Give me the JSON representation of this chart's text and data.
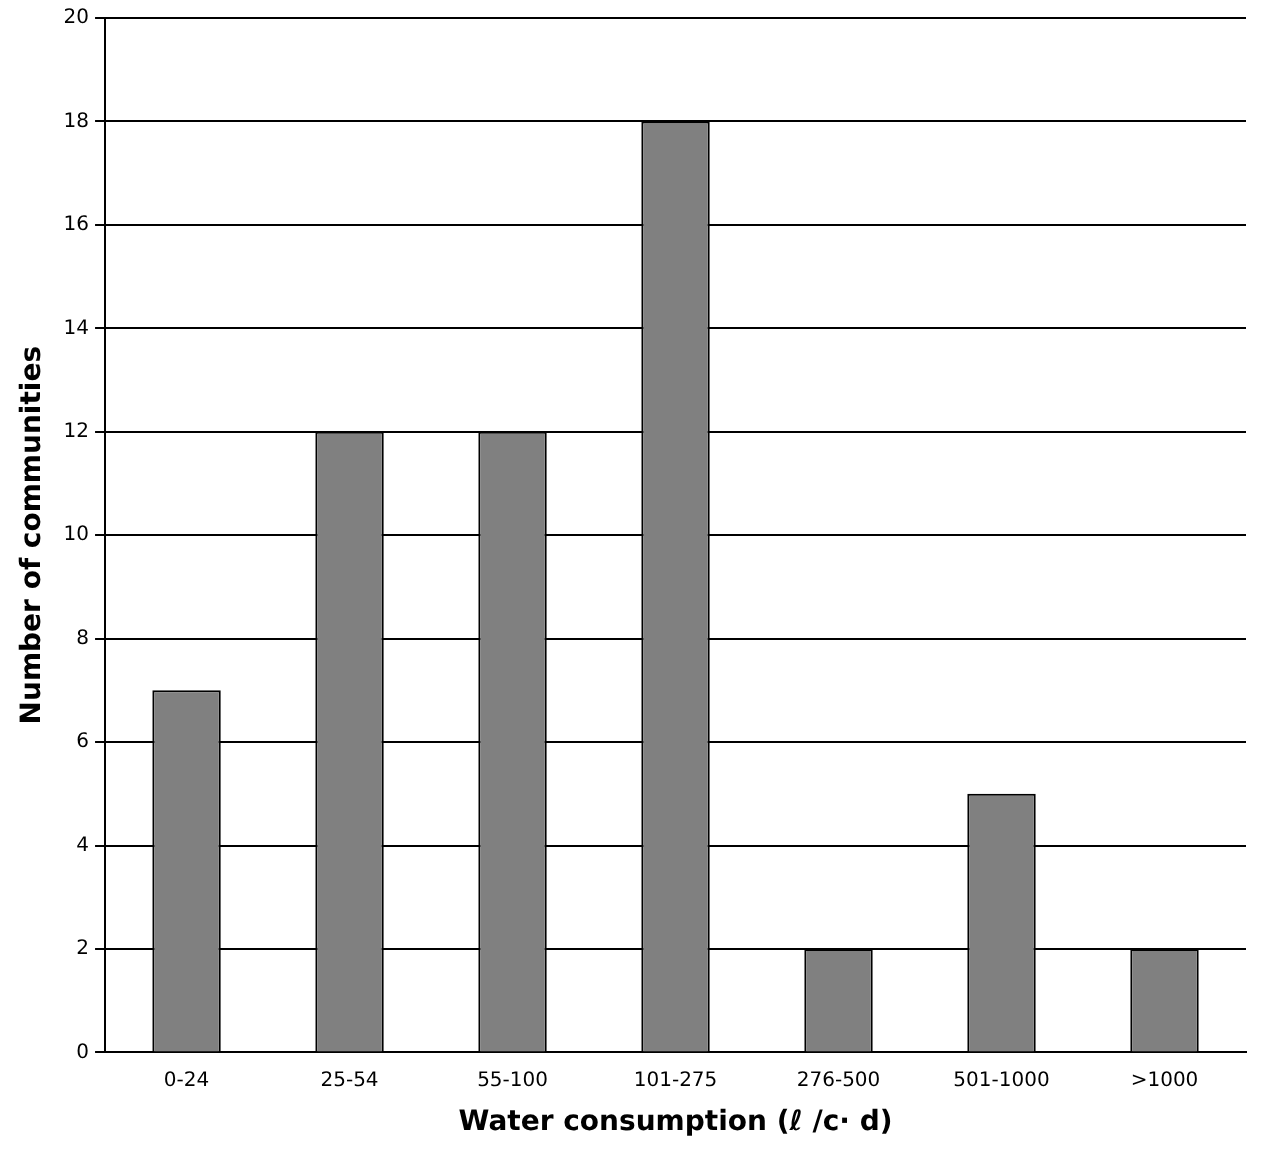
{
  "chart_data": {
    "type": "bar",
    "xlabel": "Water consumption (ℓ /c· d)",
    "ylabel": "Number of communities",
    "categories": [
      "0-24",
      "25-54",
      "55-100",
      "101-275",
      "276-500",
      "501-1000",
      ">1000"
    ],
    "values": [
      7,
      12,
      12,
      18,
      2,
      5,
      2
    ],
    "color": "#808080",
    "ylim": [
      0,
      20
    ],
    "yticks": [
      0,
      2,
      4,
      6,
      8,
      10,
      12,
      14,
      16,
      18,
      20
    ],
    "grid": "y",
    "legend": false
  }
}
